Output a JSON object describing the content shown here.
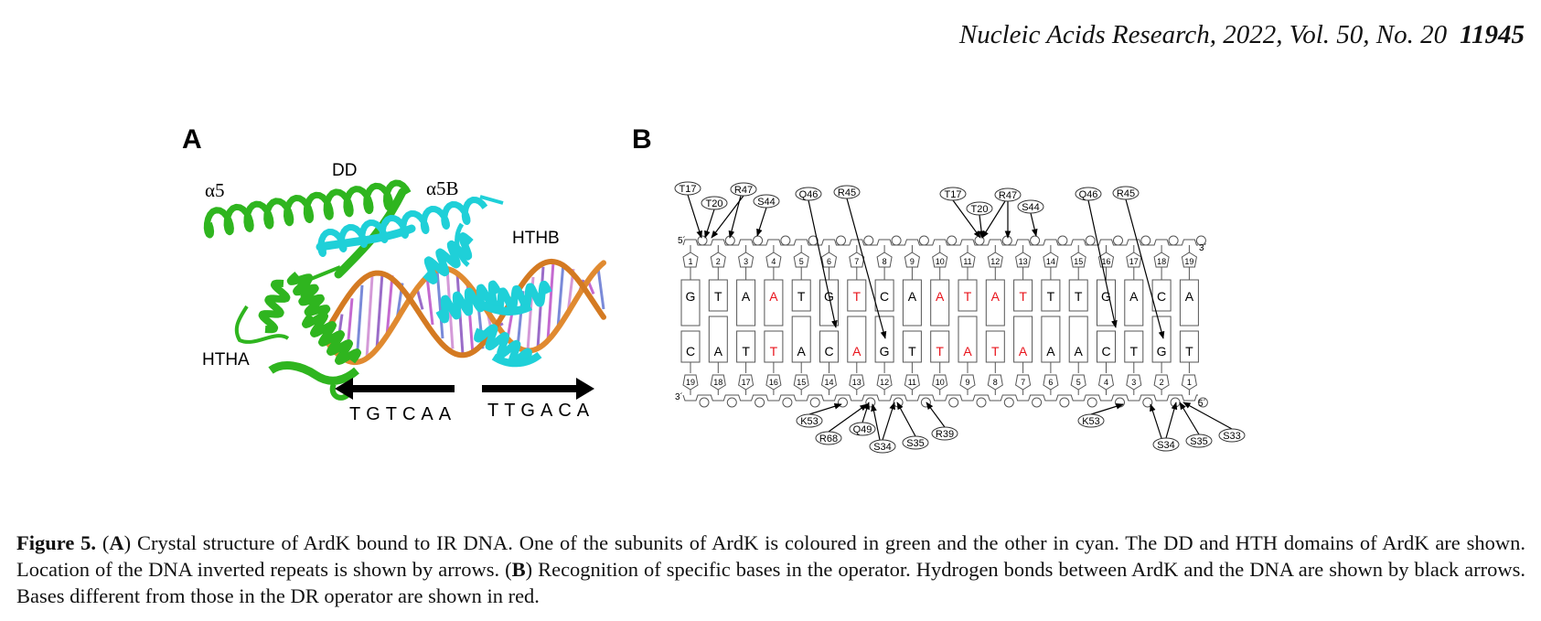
{
  "header": {
    "journal": "Nucleic Acids Research, 2022, Vol. 50, No. 20",
    "page": "11945"
  },
  "panel_a": {
    "label": "A",
    "helix_a5": "α5",
    "helix_a5b": "α5B",
    "domain_dd": "DD",
    "domain_htha": "HTHA",
    "domain_hthb": "HTHB",
    "repeat_left": "TGTCAA",
    "repeat_right": "TTGACA",
    "colors": {
      "subunit_a": "#2fb51f",
      "subunit_b": "#1fd0d8",
      "dna_backbone": "#e08a30",
      "bases": "#9a6cc8"
    }
  },
  "panel_b": {
    "label": "B",
    "top_strand": {
      "end5": "5´",
      "end3": "3´",
      "numbers": [
        "1",
        "2",
        "3",
        "4",
        "5",
        "6",
        "7",
        "8",
        "9",
        "10",
        "11",
        "12",
        "13",
        "14",
        "15",
        "16",
        "17",
        "18",
        "19"
      ],
      "bases": [
        "G",
        "T",
        "A",
        "A",
        "T",
        "G",
        "T",
        "C",
        "A",
        "A",
        "T",
        "A",
        "T",
        "T",
        "T",
        "G",
        "A",
        "C",
        "A"
      ],
      "red": [
        false,
        false,
        false,
        true,
        false,
        false,
        true,
        false,
        false,
        true,
        true,
        true,
        true,
        false,
        false,
        false,
        false,
        false,
        false
      ]
    },
    "bottom_strand": {
      "end3": "3´",
      "end5": "5´",
      "numbers": [
        "19",
        "18",
        "17",
        "16",
        "15",
        "14",
        "13",
        "12",
        "11",
        "10",
        "9",
        "8",
        "7",
        "6",
        "5",
        "4",
        "3",
        "2",
        "1"
      ],
      "bases": [
        "C",
        "A",
        "T",
        "T",
        "A",
        "C",
        "A",
        "G",
        "T",
        "T",
        "A",
        "T",
        "A",
        "A",
        "A",
        "C",
        "T",
        "G",
        "T"
      ],
      "red": [
        false,
        false,
        false,
        true,
        false,
        false,
        true,
        false,
        false,
        true,
        true,
        true,
        true,
        false,
        false,
        false,
        false,
        false,
        false
      ]
    },
    "top_labels": [
      "T17",
      "T20",
      "R47",
      "S44",
      "Q46",
      "R45",
      "T17",
      "T20",
      "R47",
      "S44",
      "Q46",
      "R45"
    ],
    "bottom_labels": [
      "K53",
      "R68",
      "Q49",
      "S34",
      "S35",
      "R39",
      "K53",
      "S34",
      "S35",
      "S33"
    ],
    "red_color": "#e8141c"
  },
  "caption": {
    "fig_label": "Figure 5.",
    "part1": " (",
    "a": "A",
    "part2": ") Crystal structure of ArdK bound to IR DNA. One of the subunits of ArdK is coloured in green and the other in cyan. The DD and HTH domains of ArdK are shown. Location of the DNA inverted repeats is shown by arrows. (",
    "b": "B",
    "part3": ") Recognition of specific bases in the operator. Hydrogen bonds between ArdK and the DNA are shown by black arrows. Bases different from those in the DR operator are shown in red."
  }
}
